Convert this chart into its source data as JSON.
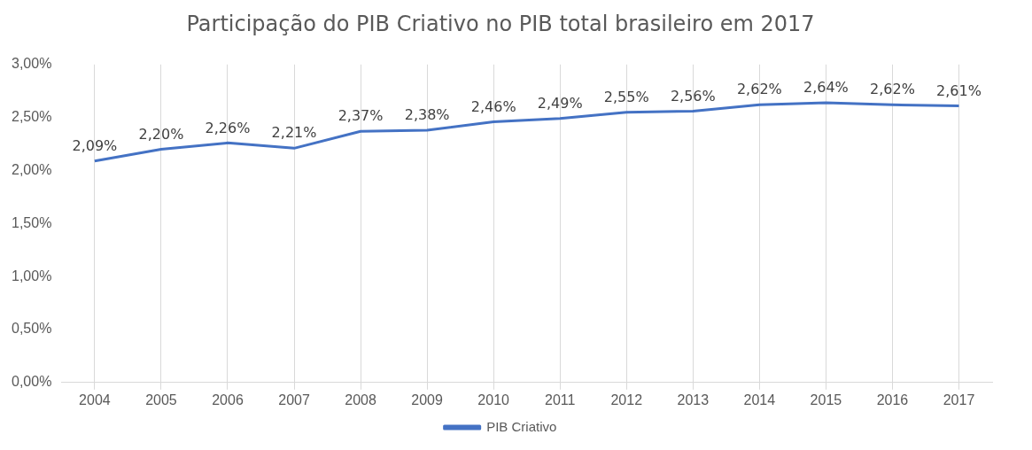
{
  "chart_data": {
    "type": "line",
    "title": "Participação do PIB Criativo no PIB total brasileiro em 2017",
    "categories": [
      "2004",
      "2005",
      "2006",
      "2007",
      "2008",
      "2009",
      "2010",
      "2011",
      "2012",
      "2013",
      "2014",
      "2015",
      "2016",
      "2017"
    ],
    "series": [
      {
        "name": "PIB Criativo",
        "color": "#4472c4",
        "values": [
          2.09,
          2.2,
          2.26,
          2.21,
          2.37,
          2.38,
          2.46,
          2.49,
          2.55,
          2.56,
          2.62,
          2.64,
          2.62,
          2.61
        ],
        "value_labels": [
          "2,09%",
          "2,20%",
          "2,26%",
          "2,21%",
          "2,37%",
          "2,38%",
          "2,46%",
          "2,49%",
          "2,55%",
          "2,56%",
          "2,62%",
          "2,64%",
          "2,62%",
          "2,61%"
        ]
      }
    ],
    "ylim": [
      0,
      3
    ],
    "yticks": [
      {
        "value": 0,
        "label": "0,00%"
      },
      {
        "value": 0.5,
        "label": "0,50%"
      },
      {
        "value": 1,
        "label": "1,00%"
      },
      {
        "value": 1.5,
        "label": "1,50%"
      },
      {
        "value": 2,
        "label": "2,00%"
      },
      {
        "value": 2.5,
        "label": "2,50%"
      },
      {
        "value": 3,
        "label": "3,00%"
      }
    ],
    "grid": "x",
    "legend": "bottom",
    "marker": "none",
    "line_style": "solid"
  }
}
